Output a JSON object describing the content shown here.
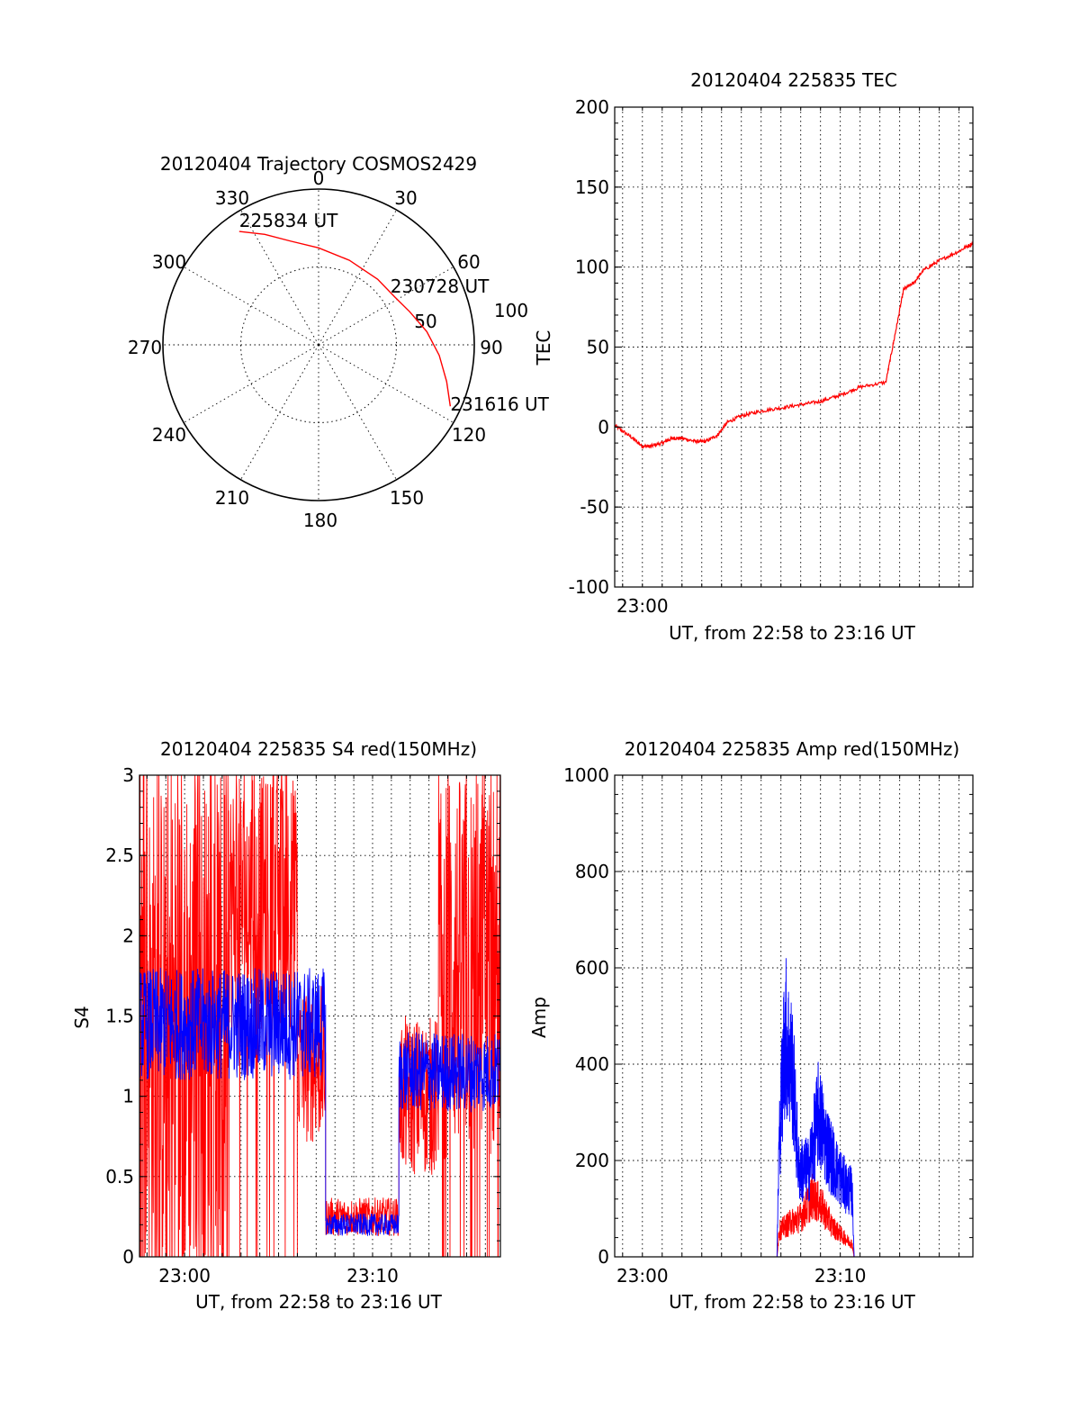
{
  "colors": {
    "red": "#ff0000",
    "blue": "#0000ff",
    "axis": "#000000"
  },
  "x_axis_label": "UT, from 22:58 to 23:16 UT",
  "chart_data": [
    {
      "id": "trajectory",
      "type": "polar",
      "title": "20120404 Trajectory COSMOS2429",
      "azimuth_labels": [
        "0",
        "30",
        "60",
        "90",
        "120",
        "150",
        "180",
        "210",
        "240",
        "270",
        "300",
        "330"
      ],
      "radial_labels": [
        "50",
        "100"
      ],
      "track_color": "red",
      "points": [
        {
          "az": 325,
          "el": 10
        },
        {
          "az": 334,
          "el": 19
        },
        {
          "az": 345,
          "el": 28
        },
        {
          "az": 0,
          "el": 34
        },
        {
          "az": 20,
          "el": 38
        },
        {
          "az": 42,
          "el": 39
        },
        {
          "az": 58,
          "el": 38
        },
        {
          "az": 70,
          "el": 34
        },
        {
          "az": 83,
          "el": 27
        },
        {
          "az": 95,
          "el": 20
        },
        {
          "az": 106,
          "el": 13
        },
        {
          "az": 115,
          "el": 6
        }
      ],
      "annotations": [
        {
          "text": "225834 UT",
          "at": 0
        },
        {
          "text": "230728 UT",
          "at": 6
        },
        {
          "text": "231616 UT",
          "at": 11
        }
      ]
    },
    {
      "id": "tec",
      "type": "line",
      "title": "20120404 225835 TEC",
      "ylabel": "TEC",
      "xlabel": "UT, from 22:58 to 23:16 UT",
      "xlim": [
        -1.4,
        16.7
      ],
      "ylim": [
        -100,
        200
      ],
      "yticks": [
        -100,
        -50,
        0,
        50,
        100,
        150,
        200
      ],
      "xticks": [
        {
          "x": 0,
          "label": "23:00"
        }
      ],
      "series": [
        {
          "color": "red",
          "points": [
            [
              -1.4,
              1
            ],
            [
              -0.6,
              -6
            ],
            [
              0,
              -12
            ],
            [
              0.4,
              -12
            ],
            [
              1,
              -10
            ],
            [
              1.5,
              -7
            ],
            [
              2,
              -7
            ],
            [
              2.7,
              -9
            ],
            [
              3.2,
              -9
            ],
            [
              3.8,
              -5
            ],
            [
              4.3,
              3
            ],
            [
              5,
              7
            ],
            [
              6,
              10
            ],
            [
              7,
              12
            ],
            [
              8,
              14
            ],
            [
              9,
              16
            ],
            [
              10,
              20
            ],
            [
              11,
              25
            ],
            [
              12.3,
              28
            ],
            [
              12.8,
              60
            ],
            [
              13.2,
              86
            ],
            [
              13.7,
              90
            ],
            [
              14.2,
              98
            ],
            [
              15,
              104
            ],
            [
              16,
              110
            ],
            [
              16.7,
              115
            ]
          ]
        }
      ]
    },
    {
      "id": "s4",
      "type": "line",
      "title": "20120404 225835 S4 red(150MHz)",
      "ylabel": "S4",
      "xlabel": "UT, from 22:58 to 23:16 UT",
      "xlim": [
        -2.4,
        16.8
      ],
      "ylim": [
        0,
        3
      ],
      "yticks": [
        0,
        0.5,
        1,
        1.5,
        2,
        2.5,
        3
      ],
      "xticks": [
        {
          "x": 0,
          "label": "23:00"
        },
        {
          "x": 10,
          "label": "23:10"
        }
      ],
      "series": [
        {
          "color": "red",
          "segments": [
            {
              "x": [
                -2.4,
                2.3
              ],
              "center": 1.4,
              "amp": 1.6,
              "spikes": true
            },
            {
              "x": [
                2.3,
                6.0
              ],
              "center": 2.2,
              "amp": 0.8,
              "spikes": true
            },
            {
              "x": [
                6.0,
                7.5
              ],
              "center": 1.2,
              "amp": 0.5
            },
            {
              "x": [
                7.5,
                11.4
              ],
              "center": 0.25,
              "amp": 0.12
            },
            {
              "x": [
                11.4,
                13.5
              ],
              "center": 1.0,
              "amp": 0.5
            },
            {
              "x": [
                13.5,
                16.8
              ],
              "center": 1.8,
              "amp": 1.2,
              "spikes": true
            }
          ]
        },
        {
          "color": "blue",
          "segments": [
            {
              "x": [
                -2.4,
                7.5
              ],
              "center": 1.45,
              "amp": 0.35
            },
            {
              "x": [
                7.5,
                11.4
              ],
              "center": 0.2,
              "amp": 0.07
            },
            {
              "x": [
                11.4,
                16.8
              ],
              "center": 1.15,
              "amp": 0.25
            }
          ]
        }
      ]
    },
    {
      "id": "amp",
      "type": "line",
      "title": "20120404 225835 Amp red(150MHz)",
      "ylabel": "Amp",
      "xlabel": "UT, from 22:58 to 23:16 UT",
      "xlim": [
        -1.4,
        16.7
      ],
      "ylim": [
        0,
        1000
      ],
      "yticks": [
        0,
        200,
        400,
        600,
        800,
        1000
      ],
      "xticks": [
        {
          "x": 0,
          "label": "23:00"
        },
        {
          "x": 10,
          "label": "23:10"
        }
      ],
      "series": [
        {
          "color": "red",
          "envelope": [
            [
              -1.4,
              0
            ],
            [
              6.8,
              0
            ],
            [
              6.9,
              60
            ],
            [
              7.5,
              80
            ],
            [
              8,
              90
            ],
            [
              8.6,
              140
            ],
            [
              9,
              120
            ],
            [
              9.6,
              70
            ],
            [
              10.3,
              40
            ],
            [
              10.6,
              30
            ],
            [
              10.7,
              0
            ],
            [
              16.7,
              0
            ]
          ]
        },
        {
          "color": "blue",
          "envelope": [
            [
              -1.4,
              0
            ],
            [
              6.8,
              0
            ],
            [
              6.9,
              250
            ],
            [
              7.2,
              520
            ],
            [
              7.6,
              420
            ],
            [
              7.9,
              200
            ],
            [
              8.4,
              200
            ],
            [
              8.9,
              330
            ],
            [
              9.3,
              260
            ],
            [
              9.8,
              200
            ],
            [
              10.3,
              160
            ],
            [
              10.6,
              150
            ],
            [
              10.7,
              0
            ],
            [
              16.7,
              0
            ]
          ]
        }
      ]
    }
  ]
}
